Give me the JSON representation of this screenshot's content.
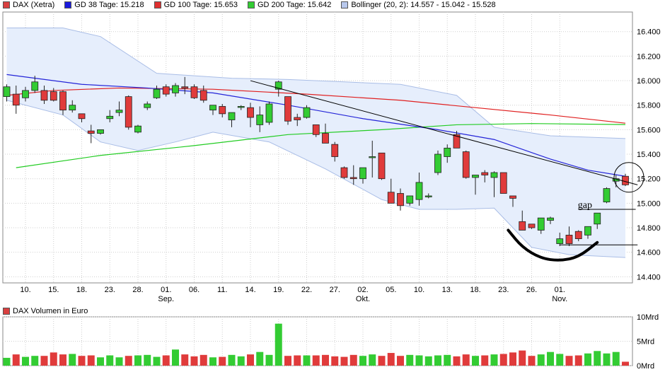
{
  "legend": [
    {
      "label": "DAX (Xetra)",
      "color": "#d94040"
    },
    {
      "label": "GD 38 Tage: 15.218",
      "color": "#1a1adc"
    },
    {
      "label": "GD 100 Tage: 15.653",
      "color": "#e03030"
    },
    {
      "label": "GD 200 Tage: 15.642",
      "color": "#33cc33"
    },
    {
      "label": "Bollinger (20, 2): 14.557 - 15.042 - 15.528",
      "color": "#b8c8ec"
    }
  ],
  "volume_legend": {
    "label": "DAX Volumen in Euro",
    "color": "#d94040"
  },
  "annotation_gap": "gap",
  "colors": {
    "up": "#33cc33",
    "down": "#e03b3b",
    "ma38": "#2424d8",
    "ma100": "#e02020",
    "ma200": "#22cc22",
    "band_fill": "#e6eefc",
    "band_line": "#a9bde6",
    "grid": "#cfcfcf"
  },
  "chart_data": [
    {
      "type": "candlestick",
      "title": "DAX (Xetra)",
      "y_ticks": [
        "14.400",
        "14.600",
        "14.800",
        "15.000",
        "15.200",
        "15.400",
        "15.600",
        "15.800",
        "16.000",
        "16.200",
        "16.400"
      ],
      "ylim": [
        14350,
        16560
      ],
      "x_tick_labels": [
        "10.",
        "15.",
        "18.",
        "23.",
        "28.",
        "01.",
        "06.",
        "11.",
        "14.",
        "19.",
        "22.",
        "27.",
        "02.",
        "05.",
        "10.",
        "13.",
        "18.",
        "23.",
        "26.",
        "01."
      ],
      "x_tick_index": [
        2,
        5,
        8,
        11,
        14,
        17,
        20,
        23,
        26,
        29,
        32,
        35,
        38,
        41,
        44,
        47,
        50,
        53,
        56,
        59
      ],
      "month_labels": [
        {
          "label": "Sep.",
          "index": 17
        },
        {
          "label": "Okt.",
          "index": 38
        },
        {
          "label": "Nov.",
          "index": 59
        }
      ],
      "candles": [
        {
          "o": 15870,
          "h": 15970,
          "l": 15830,
          "c": 15950
        },
        {
          "o": 15890,
          "h": 15960,
          "l": 15730,
          "c": 15800
        },
        {
          "o": 15860,
          "h": 15950,
          "l": 15830,
          "c": 15920
        },
        {
          "o": 15920,
          "h": 16040,
          "l": 15900,
          "c": 15990
        },
        {
          "o": 15920,
          "h": 15960,
          "l": 15810,
          "c": 15840
        },
        {
          "o": 15910,
          "h": 15940,
          "l": 15830,
          "c": 15840
        },
        {
          "o": 15910,
          "h": 15920,
          "l": 15720,
          "c": 15760
        },
        {
          "o": 15760,
          "h": 15840,
          "l": 15740,
          "c": 15800
        },
        {
          "o": 15730,
          "h": 15730,
          "l": 15660,
          "c": 15690
        },
        {
          "o": 15590,
          "h": 15640,
          "l": 15490,
          "c": 15570
        },
        {
          "o": 15570,
          "h": 15600,
          "l": 15560,
          "c": 15600
        },
        {
          "o": 15690,
          "h": 15760,
          "l": 15660,
          "c": 15710
        },
        {
          "o": 15740,
          "h": 15830,
          "l": 15710,
          "c": 15760
        },
        {
          "o": 15870,
          "h": 15880,
          "l": 15600,
          "c": 15620
        },
        {
          "o": 15580,
          "h": 15640,
          "l": 15570,
          "c": 15630
        },
        {
          "o": 15780,
          "h": 15830,
          "l": 15760,
          "c": 15810
        },
        {
          "o": 15860,
          "h": 15960,
          "l": 15850,
          "c": 15930
        },
        {
          "o": 15950,
          "h": 15970,
          "l": 15870,
          "c": 15890
        },
        {
          "o": 15900,
          "h": 15980,
          "l": 15870,
          "c": 15960
        },
        {
          "o": 15950,
          "h": 16030,
          "l": 15890,
          "c": 15940
        },
        {
          "o": 15950,
          "h": 15970,
          "l": 15850,
          "c": 15860
        },
        {
          "o": 15920,
          "h": 15960,
          "l": 15820,
          "c": 15840
        },
        {
          "o": 15760,
          "h": 15800,
          "l": 15720,
          "c": 15800
        },
        {
          "o": 15790,
          "h": 15810,
          "l": 15700,
          "c": 15730
        },
        {
          "o": 15680,
          "h": 15740,
          "l": 15620,
          "c": 15740
        },
        {
          "o": 15790,
          "h": 15800,
          "l": 15760,
          "c": 15790
        },
        {
          "o": 15780,
          "h": 15820,
          "l": 15620,
          "c": 15700
        },
        {
          "o": 15640,
          "h": 15790,
          "l": 15580,
          "c": 15720
        },
        {
          "o": 15660,
          "h": 15830,
          "l": 15640,
          "c": 15810
        },
        {
          "o": 15930,
          "h": 16000,
          "l": 15870,
          "c": 15990
        },
        {
          "o": 15870,
          "h": 15860,
          "l": 15640,
          "c": 15670
        },
        {
          "o": 15700,
          "h": 15730,
          "l": 15630,
          "c": 15680
        },
        {
          "o": 15700,
          "h": 15800,
          "l": 15690,
          "c": 15780
        },
        {
          "o": 15640,
          "h": 15640,
          "l": 15540,
          "c": 15560
        },
        {
          "o": 15570,
          "h": 15650,
          "l": 15500,
          "c": 15490
        },
        {
          "o": 15480,
          "h": 15500,
          "l": 15340,
          "c": 15380
        },
        {
          "o": 15290,
          "h": 15300,
          "l": 15200,
          "c": 15210
        },
        {
          "o": 15210,
          "h": 15310,
          "l": 15150,
          "c": 15200
        },
        {
          "o": 15200,
          "h": 15290,
          "l": 15160,
          "c": 15290
        },
        {
          "o": 15380,
          "h": 15510,
          "l": 15210,
          "c": 15380
        },
        {
          "o": 15410,
          "h": 15400,
          "l": 15190,
          "c": 15200
        },
        {
          "o": 15090,
          "h": 15200,
          "l": 15010,
          "c": 15000
        },
        {
          "o": 15080,
          "h": 15120,
          "l": 14940,
          "c": 14980
        },
        {
          "o": 15000,
          "h": 15060,
          "l": 14980,
          "c": 15060
        },
        {
          "o": 15030,
          "h": 15250,
          "l": 14980,
          "c": 15170
        },
        {
          "o": 15060,
          "h": 15080,
          "l": 15040,
          "c": 15060
        },
        {
          "o": 15250,
          "h": 15430,
          "l": 15230,
          "c": 15400
        },
        {
          "o": 15380,
          "h": 15480,
          "l": 15330,
          "c": 15450
        },
        {
          "o": 15560,
          "h": 15590,
          "l": 15460,
          "c": 15450
        },
        {
          "o": 15420,
          "h": 15430,
          "l": 15200,
          "c": 15210
        },
        {
          "o": 15210,
          "h": 15210,
          "l": 15070,
          "c": 15230
        },
        {
          "o": 15250,
          "h": 15270,
          "l": 15170,
          "c": 15230
        },
        {
          "o": 15210,
          "h": 15260,
          "l": 15050,
          "c": 15250
        },
        {
          "o": 15250,
          "h": 15250,
          "l": 15100,
          "c": 15080
        },
        {
          "o": 15060,
          "h": 15060,
          "l": 14970,
          "c": 15040
        },
        {
          "o": 14850,
          "h": 14940,
          "l": 14780,
          "c": 14780
        },
        {
          "o": 14830,
          "h": 14820,
          "l": 14790,
          "c": 14800
        },
        {
          "o": 14780,
          "h": 14880,
          "l": 14750,
          "c": 14880
        },
        {
          "o": 14860,
          "h": 14890,
          "l": 14830,
          "c": 14880
        },
        {
          "o": 14670,
          "h": 14760,
          "l": 14650,
          "c": 14710
        },
        {
          "o": 14740,
          "h": 14810,
          "l": 14650,
          "c": 14670
        },
        {
          "o": 14770,
          "h": 14780,
          "l": 14690,
          "c": 14710
        },
        {
          "o": 14740,
          "h": 14810,
          "l": 14710,
          "c": 14810
        },
        {
          "o": 14830,
          "h": 14920,
          "l": 14790,
          "c": 14920
        },
        {
          "o": 15010,
          "h": 15130,
          "l": 15000,
          "c": 15120
        },
        {
          "o": 15180,
          "h": 15230,
          "l": 15130,
          "c": 15200
        },
        {
          "o": 15220,
          "h": 15240,
          "l": 15140,
          "c": 15150
        }
      ],
      "ma38": [
        {
          "i": 0,
          "v": 16050
        },
        {
          "i": 8,
          "v": 15970
        },
        {
          "i": 15,
          "v": 15940
        },
        {
          "i": 22,
          "v": 15900
        },
        {
          "i": 30,
          "v": 15800
        },
        {
          "i": 38,
          "v": 15690
        },
        {
          "i": 46,
          "v": 15600
        },
        {
          "i": 52,
          "v": 15520
        },
        {
          "i": 58,
          "v": 15360
        },
        {
          "i": 62,
          "v": 15270
        },
        {
          "i": 66,
          "v": 15220
        }
      ],
      "ma100": [
        {
          "i": 0,
          "v": 15880
        },
        {
          "i": 5,
          "v": 15920
        },
        {
          "i": 12,
          "v": 15940
        },
        {
          "i": 22,
          "v": 15930
        },
        {
          "i": 32,
          "v": 15890
        },
        {
          "i": 42,
          "v": 15840
        },
        {
          "i": 50,
          "v": 15780
        },
        {
          "i": 58,
          "v": 15720
        },
        {
          "i": 66,
          "v": 15653
        }
      ],
      "ma200": [
        {
          "i": 1,
          "v": 15290
        },
        {
          "i": 10,
          "v": 15390
        },
        {
          "i": 20,
          "v": 15470
        },
        {
          "i": 30,
          "v": 15560
        },
        {
          "i": 40,
          "v": 15600
        },
        {
          "i": 48,
          "v": 15640
        },
        {
          "i": 56,
          "v": 15650
        },
        {
          "i": 66,
          "v": 15642
        }
      ],
      "bollinger_upper": [
        {
          "i": 0,
          "v": 16430
        },
        {
          "i": 6,
          "v": 16430
        },
        {
          "i": 10,
          "v": 16360
        },
        {
          "i": 16,
          "v": 16060
        },
        {
          "i": 24,
          "v": 16020
        },
        {
          "i": 30,
          "v": 16010
        },
        {
          "i": 36,
          "v": 15990
        },
        {
          "i": 42,
          "v": 15970
        },
        {
          "i": 48,
          "v": 15880
        },
        {
          "i": 52,
          "v": 15620
        },
        {
          "i": 58,
          "v": 15550
        },
        {
          "i": 66,
          "v": 15528
        }
      ],
      "bollinger_lower": [
        {
          "i": 0,
          "v": 15840
        },
        {
          "i": 6,
          "v": 15720
        },
        {
          "i": 10,
          "v": 15500
        },
        {
          "i": 14,
          "v": 15430
        },
        {
          "i": 18,
          "v": 15500
        },
        {
          "i": 22,
          "v": 15580
        },
        {
          "i": 28,
          "v": 15500
        },
        {
          "i": 34,
          "v": 15280
        },
        {
          "i": 40,
          "v": 15030
        },
        {
          "i": 44,
          "v": 14950
        },
        {
          "i": 48,
          "v": 14950
        },
        {
          "i": 52,
          "v": 14960
        },
        {
          "i": 56,
          "v": 14640
        },
        {
          "i": 60,
          "v": 14580
        },
        {
          "i": 66,
          "v": 14557
        }
      ],
      "trendline": [
        {
          "i": 26,
          "v": 16000
        },
        {
          "i": 67.3,
          "v": 15150
        }
      ],
      "gap_line": {
        "i1": 61,
        "i2": 67.1,
        "v": 14950
      },
      "support_line": {
        "i1": 59,
        "i2": 67.3,
        "v": 14660
      },
      "highlight_circle": {
        "i": 66,
        "v": 15200
      },
      "rounding_bottom": [
        {
          "i": 53.5,
          "v": 14780
        },
        {
          "i": 55,
          "v": 14640
        },
        {
          "i": 57,
          "v": 14550
        },
        {
          "i": 59,
          "v": 14530
        },
        {
          "i": 61,
          "v": 14560
        },
        {
          "i": 63,
          "v": 14680
        }
      ]
    },
    {
      "type": "bar",
      "title": "DAX Volumen in Euro",
      "y_ticks": [
        "0Mrd",
        "5Mrd",
        "10Mrd"
      ],
      "ylim": [
        0,
        10
      ],
      "values": [
        1.6,
        2.3,
        1.8,
        2.0,
        2.0,
        2.7,
        2.3,
        2.4,
        2.0,
        2.1,
        1.7,
        2.1,
        1.7,
        2.0,
        2.1,
        2.2,
        1.8,
        2.1,
        3.3,
        2.3,
        1.9,
        2.2,
        1.7,
        1.8,
        2.2,
        1.9,
        2.3,
        2.8,
        2.2,
        8.6,
        2.0,
        2.1,
        2.1,
        2.1,
        2.2,
        1.9,
        1.8,
        2.2,
        2.0,
        2.3,
        2.0,
        2.6,
        2.0,
        2.2,
        2.1,
        1.9,
        2.1,
        2.2,
        1.9,
        2.3,
        2.0,
        2.1,
        2.3,
        2.4,
        2.7,
        3.1,
        2.0,
        2.3,
        2.8,
        2.4,
        2.0,
        2.1,
        2.5,
        3.0,
        2.5,
        2.8,
        0.8
      ]
    }
  ]
}
